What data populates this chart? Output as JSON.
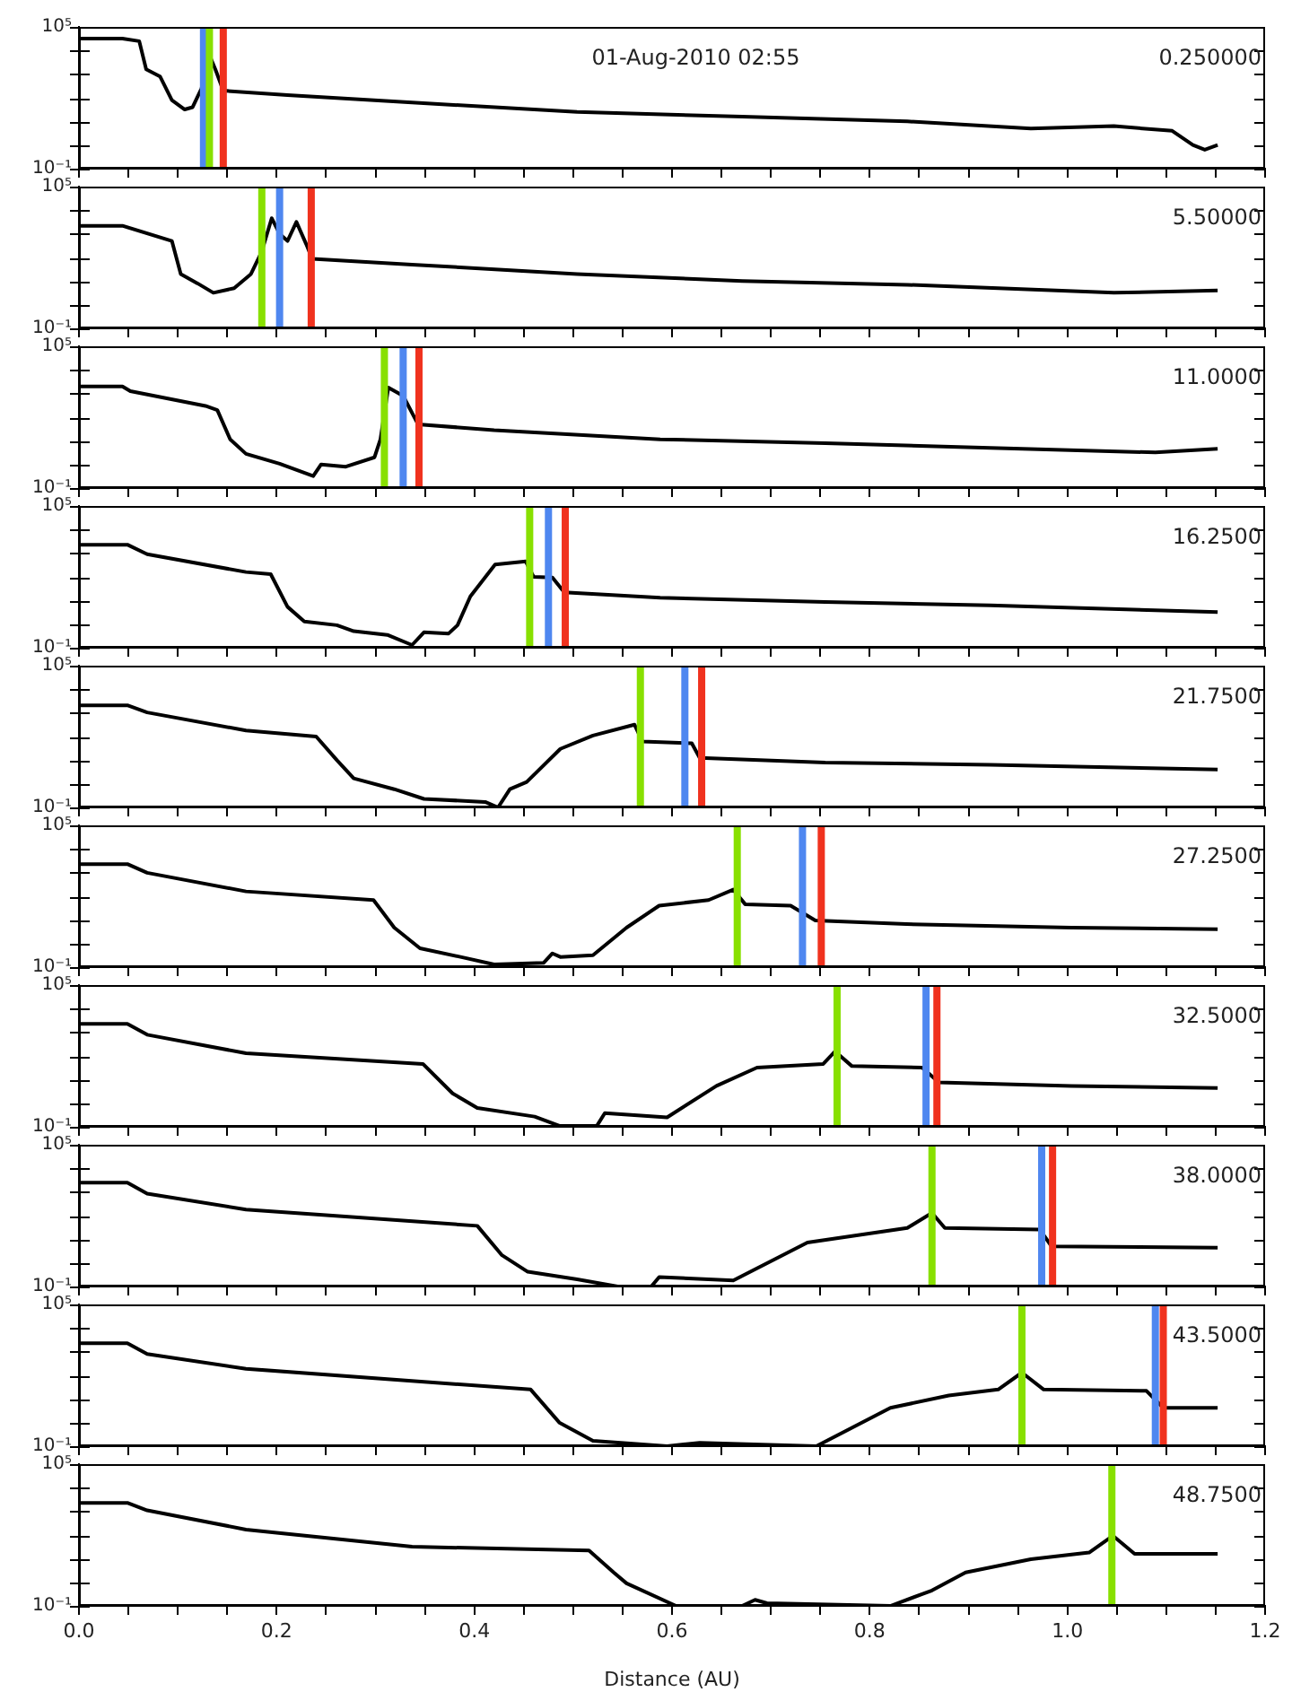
{
  "chart_data": [
    {
      "type": "line",
      "title": "01-Aug-2010 02:55",
      "annotations": [
        "0.250000"
      ],
      "color": "#000000",
      "log": "y",
      "tick_labels": "y",
      "xlim": [
        0,
        1.2
      ],
      "ylim": [
        0.1,
        100000
      ],
      "xticks": [
        {
          "value": 0,
          "label": null
        },
        {
          "value": 0.05,
          "label": null
        },
        {
          "value": 0.1,
          "label": null
        },
        {
          "value": 0.15,
          "label": null
        },
        {
          "value": 0.2,
          "label": null
        },
        {
          "value": 0.25,
          "label": null
        },
        {
          "value": 0.3,
          "label": null
        },
        {
          "value": 0.35,
          "label": null
        },
        {
          "value": 0.4,
          "label": null
        },
        {
          "value": 0.45,
          "label": null
        },
        {
          "value": 0.5,
          "label": null
        },
        {
          "value": 0.55,
          "label": null
        },
        {
          "value": 0.6,
          "label": null
        },
        {
          "value": 0.65,
          "label": null
        },
        {
          "value": 0.7,
          "label": null
        },
        {
          "value": 0.75,
          "label": null
        },
        {
          "value": 0.8,
          "label": null
        },
        {
          "value": 0.85,
          "label": null
        },
        {
          "value": 0.9,
          "label": null
        },
        {
          "value": 0.95,
          "label": null
        },
        {
          "value": 1.0,
          "label": null
        },
        {
          "value": 1.05,
          "label": null
        },
        {
          "value": 1.1,
          "label": null
        },
        {
          "value": 1.15,
          "label": null
        },
        {
          "value": 1.2,
          "label": null
        }
      ],
      "yticks": [
        {
          "value": 0.1,
          "label": "10⁻¹"
        },
        {
          "value": 1,
          "label": null
        },
        {
          "value": 10,
          "label": null
        },
        {
          "value": 100,
          "label": null
        },
        {
          "value": 1000,
          "label": null
        },
        {
          "value": 10000,
          "label": null
        },
        {
          "value": 100000,
          "label": "10⁵"
        }
      ],
      "x": [
        0,
        0.044,
        0.061,
        0.068,
        0.082,
        0.094,
        0.107,
        0.115,
        0.124,
        0.132,
        0.138,
        0.146,
        0.211,
        0.337,
        0.504,
        0.671,
        0.838,
        0.963,
        1.047,
        1.106,
        1.127,
        1.139,
        1.152
      ],
      "values": [
        32000,
        32000,
        25000,
        1600,
        800,
        80,
        32,
        40,
        250,
        6300,
        1600,
        200,
        130,
        63,
        25,
        16,
        10,
        5,
        6.3,
        4,
        1,
        0.63,
        1
      ],
      "ref_lines": [
        {
          "axis": "x",
          "value": 0.126,
          "color": "#4f87f0"
        },
        {
          "axis": "x",
          "value": 0.132,
          "color": "#88e000"
        },
        {
          "axis": "x",
          "value": 0.146,
          "color": "#f0321e"
        }
      ]
    },
    {
      "type": "line",
      "annotations": [
        "5.50000"
      ],
      "color": "#000000",
      "log": "y",
      "tick_labels": "y",
      "xlim": [
        0,
        1.2
      ],
      "ylim": [
        0.1,
        100000
      ],
      "xticks": [
        {
          "value": 0,
          "label": null
        },
        {
          "value": 0.05,
          "label": null
        },
        {
          "value": 0.1,
          "label": null
        },
        {
          "value": 0.15,
          "label": null
        },
        {
          "value": 0.2,
          "label": null
        },
        {
          "value": 0.25,
          "label": null
        },
        {
          "value": 0.3,
          "label": null
        },
        {
          "value": 0.35,
          "label": null
        },
        {
          "value": 0.4,
          "label": null
        },
        {
          "value": 0.45,
          "label": null
        },
        {
          "value": 0.5,
          "label": null
        },
        {
          "value": 0.55,
          "label": null
        },
        {
          "value": 0.6,
          "label": null
        },
        {
          "value": 0.65,
          "label": null
        },
        {
          "value": 0.7,
          "label": null
        },
        {
          "value": 0.75,
          "label": null
        },
        {
          "value": 0.8,
          "label": null
        },
        {
          "value": 0.85,
          "label": null
        },
        {
          "value": 0.9,
          "label": null
        },
        {
          "value": 0.95,
          "label": null
        },
        {
          "value": 1.0,
          "label": null
        },
        {
          "value": 1.05,
          "label": null
        },
        {
          "value": 1.1,
          "label": null
        },
        {
          "value": 1.15,
          "label": null
        },
        {
          "value": 1.2,
          "label": null
        }
      ],
      "yticks": [
        {
          "value": 0.1,
          "label": "10⁻¹"
        },
        {
          "value": 1,
          "label": null
        },
        {
          "value": 10,
          "label": null
        },
        {
          "value": 100,
          "label": null
        },
        {
          "value": 1000,
          "label": null
        },
        {
          "value": 10000,
          "label": null
        },
        {
          "value": 100000,
          "label": "10⁵"
        }
      ],
      "x": [
        0,
        0.044,
        0.094,
        0.103,
        0.12,
        0.136,
        0.157,
        0.174,
        0.185,
        0.195,
        0.203,
        0.211,
        0.22,
        0.23,
        0.236,
        0.337,
        0.504,
        0.671,
        0.838,
        1.047,
        1.152
      ],
      "values": [
        2200,
        2200,
        500,
        20,
        8,
        3.2,
        5,
        20,
        180,
        4600,
        1000,
        500,
        3200,
        360,
        87,
        50,
        20,
        10,
        7,
        3.2,
        4
      ],
      "ref_lines": [
        {
          "axis": "x",
          "value": 0.185,
          "color": "#88e000"
        },
        {
          "axis": "x",
          "value": 0.203,
          "color": "#4f87f0"
        },
        {
          "axis": "x",
          "value": 0.235,
          "color": "#f0321e"
        }
      ]
    },
    {
      "type": "line",
      "annotations": [
        "11.0000"
      ],
      "color": "#000000",
      "log": "y",
      "tick_labels": "y",
      "xlim": [
        0,
        1.2
      ],
      "ylim": [
        0.1,
        100000
      ],
      "xticks": [
        {
          "value": 0,
          "label": null
        },
        {
          "value": 0.05,
          "label": null
        },
        {
          "value": 0.1,
          "label": null
        },
        {
          "value": 0.15,
          "label": null
        },
        {
          "value": 0.2,
          "label": null
        },
        {
          "value": 0.25,
          "label": null
        },
        {
          "value": 0.3,
          "label": null
        },
        {
          "value": 0.35,
          "label": null
        },
        {
          "value": 0.4,
          "label": null
        },
        {
          "value": 0.45,
          "label": null
        },
        {
          "value": 0.5,
          "label": null
        },
        {
          "value": 0.55,
          "label": null
        },
        {
          "value": 0.6,
          "label": null
        },
        {
          "value": 0.65,
          "label": null
        },
        {
          "value": 0.7,
          "label": null
        },
        {
          "value": 0.75,
          "label": null
        },
        {
          "value": 0.8,
          "label": null
        },
        {
          "value": 0.85,
          "label": null
        },
        {
          "value": 0.9,
          "label": null
        },
        {
          "value": 0.95,
          "label": null
        },
        {
          "value": 1.0,
          "label": null
        },
        {
          "value": 1.05,
          "label": null
        },
        {
          "value": 1.1,
          "label": null
        },
        {
          "value": 1.15,
          "label": null
        },
        {
          "value": 1.2,
          "label": null
        }
      ],
      "yticks": [
        {
          "value": 0.1,
          "label": "10⁻¹"
        },
        {
          "value": 1,
          "label": null
        },
        {
          "value": 10,
          "label": null
        },
        {
          "value": 100,
          "label": null
        },
        {
          "value": 1000,
          "label": null
        },
        {
          "value": 10000,
          "label": null
        },
        {
          "value": 100000,
          "label": "10⁵"
        }
      ],
      "x": [
        0,
        0.044,
        0.052,
        0.128,
        0.14,
        0.153,
        0.169,
        0.203,
        0.237,
        0.245,
        0.27,
        0.299,
        0.305,
        0.313,
        0.328,
        0.343,
        0.42,
        0.588,
        0.755,
        0.922,
        1.089,
        1.152
      ],
      "values": [
        2000,
        2000,
        1260,
        300,
        200,
        11.5,
        2.8,
        1.07,
        0.32,
        1,
        0.8,
        2,
        11.5,
        1800,
        800,
        50,
        28,
        11.5,
        8,
        5,
        3.2,
        4.6
      ],
      "ref_lines": [
        {
          "axis": "x",
          "value": 0.309,
          "color": "#88e000"
        },
        {
          "axis": "x",
          "value": 0.328,
          "color": "#4f87f0"
        },
        {
          "axis": "x",
          "value": 0.344,
          "color": "#f0321e"
        }
      ]
    },
    {
      "type": "line",
      "annotations": [
        "16.2500"
      ],
      "color": "#000000",
      "log": "y",
      "tick_labels": "y",
      "xlim": [
        0,
        1.2
      ],
      "ylim": [
        0.1,
        100000
      ],
      "xticks": [
        {
          "value": 0,
          "label": null
        },
        {
          "value": 0.05,
          "label": null
        },
        {
          "value": 0.1,
          "label": null
        },
        {
          "value": 0.15,
          "label": null
        },
        {
          "value": 0.2,
          "label": null
        },
        {
          "value": 0.25,
          "label": null
        },
        {
          "value": 0.3,
          "label": null
        },
        {
          "value": 0.35,
          "label": null
        },
        {
          "value": 0.4,
          "label": null
        },
        {
          "value": 0.45,
          "label": null
        },
        {
          "value": 0.5,
          "label": null
        },
        {
          "value": 0.55,
          "label": null
        },
        {
          "value": 0.6,
          "label": null
        },
        {
          "value": 0.65,
          "label": null
        },
        {
          "value": 0.7,
          "label": null
        },
        {
          "value": 0.75,
          "label": null
        },
        {
          "value": 0.8,
          "label": null
        },
        {
          "value": 0.85,
          "label": null
        },
        {
          "value": 0.9,
          "label": null
        },
        {
          "value": 0.95,
          "label": null
        },
        {
          "value": 1.0,
          "label": null
        },
        {
          "value": 1.05,
          "label": null
        },
        {
          "value": 1.1,
          "label": null
        },
        {
          "value": 1.15,
          "label": null
        },
        {
          "value": 1.2,
          "label": null
        }
      ],
      "yticks": [
        {
          "value": 0.1,
          "label": "10⁻¹"
        },
        {
          "value": 1,
          "label": null
        },
        {
          "value": 10,
          "label": null
        },
        {
          "value": 100,
          "label": null
        },
        {
          "value": 1000,
          "label": null
        },
        {
          "value": 10000,
          "label": null
        },
        {
          "value": 100000,
          "label": "10⁵"
        }
      ],
      "x": [
        0,
        0.049,
        0.069,
        0.169,
        0.194,
        0.211,
        0.228,
        0.261,
        0.278,
        0.312,
        0.337,
        0.349,
        0.374,
        0.383,
        0.396,
        0.421,
        0.452,
        0.46,
        0.479,
        0.491,
        0.588,
        0.755,
        0.922,
        1.152
      ],
      "values": [
        2300,
        2300,
        910,
        160,
        130,
        5.4,
        1.3,
        0.9,
        0.5,
        0.35,
        0.13,
        0.45,
        0.4,
        0.9,
        15,
        330,
        450,
        100,
        93,
        22,
        13,
        8.7,
        6.2,
        3.2
      ],
      "ref_lines": [
        {
          "axis": "x",
          "value": 0.456,
          "color": "#88e000"
        },
        {
          "axis": "x",
          "value": 0.475,
          "color": "#4f87f0"
        },
        {
          "axis": "x",
          "value": 0.492,
          "color": "#f0321e"
        }
      ]
    },
    {
      "type": "line",
      "annotations": [
        "21.7500"
      ],
      "color": "#000000",
      "log": "y",
      "tick_labels": "y",
      "xlim": [
        0,
        1.2
      ],
      "ylim": [
        0.1,
        100000
      ],
      "xticks": [
        {
          "value": 0,
          "label": null
        },
        {
          "value": 0.05,
          "label": null
        },
        {
          "value": 0.1,
          "label": null
        },
        {
          "value": 0.15,
          "label": null
        },
        {
          "value": 0.2,
          "label": null
        },
        {
          "value": 0.25,
          "label": null
        },
        {
          "value": 0.3,
          "label": null
        },
        {
          "value": 0.35,
          "label": null
        },
        {
          "value": 0.4,
          "label": null
        },
        {
          "value": 0.45,
          "label": null
        },
        {
          "value": 0.5,
          "label": null
        },
        {
          "value": 0.55,
          "label": null
        },
        {
          "value": 0.6,
          "label": null
        },
        {
          "value": 0.65,
          "label": null
        },
        {
          "value": 0.7,
          "label": null
        },
        {
          "value": 0.75,
          "label": null
        },
        {
          "value": 0.8,
          "label": null
        },
        {
          "value": 0.85,
          "label": null
        },
        {
          "value": 0.9,
          "label": null
        },
        {
          "value": 0.95,
          "label": null
        },
        {
          "value": 1.0,
          "label": null
        },
        {
          "value": 1.05,
          "label": null
        },
        {
          "value": 1.1,
          "label": null
        },
        {
          "value": 1.15,
          "label": null
        },
        {
          "value": 1.2,
          "label": null
        }
      ],
      "yticks": [
        {
          "value": 0.1,
          "label": "10⁻¹"
        },
        {
          "value": 1,
          "label": null
        },
        {
          "value": 10,
          "label": null
        },
        {
          "value": 100,
          "label": null
        },
        {
          "value": 1000,
          "label": null
        },
        {
          "value": 10000,
          "label": null
        },
        {
          "value": 100000,
          "label": "10⁵"
        }
      ],
      "x": [
        0,
        0.049,
        0.069,
        0.169,
        0.24,
        0.261,
        0.278,
        0.319,
        0.349,
        0.411,
        0.424,
        0.436,
        0.453,
        0.487,
        0.52,
        0.562,
        0.57,
        0.62,
        0.628,
        0.755,
        0.922,
        1.152
      ],
      "values": [
        2100,
        2100,
        1050,
        180,
        100,
        10,
        1.7,
        0.59,
        0.23,
        0.17,
        0.1,
        0.59,
        1.2,
        30,
        110,
        320,
        62,
        52,
        12.6,
        8,
        6.3,
        4
      ],
      "ref_lines": [
        {
          "axis": "x",
          "value": 0.568,
          "color": "#88e000"
        },
        {
          "axis": "x",
          "value": 0.613,
          "color": "#4f87f0"
        },
        {
          "axis": "x",
          "value": 0.63,
          "color": "#f0321e"
        }
      ]
    },
    {
      "type": "line",
      "annotations": [
        "27.2500"
      ],
      "color": "#000000",
      "log": "y",
      "tick_labels": "y",
      "xlim": [
        0,
        1.2
      ],
      "ylim": [
        0.1,
        100000
      ],
      "xticks": [
        {
          "value": 0,
          "label": null
        },
        {
          "value": 0.05,
          "label": null
        },
        {
          "value": 0.1,
          "label": null
        },
        {
          "value": 0.15,
          "label": null
        },
        {
          "value": 0.2,
          "label": null
        },
        {
          "value": 0.25,
          "label": null
        },
        {
          "value": 0.3,
          "label": null
        },
        {
          "value": 0.35,
          "label": null
        },
        {
          "value": 0.4,
          "label": null
        },
        {
          "value": 0.45,
          "label": null
        },
        {
          "value": 0.5,
          "label": null
        },
        {
          "value": 0.55,
          "label": null
        },
        {
          "value": 0.6,
          "label": null
        },
        {
          "value": 0.65,
          "label": null
        },
        {
          "value": 0.7,
          "label": null
        },
        {
          "value": 0.75,
          "label": null
        },
        {
          "value": 0.8,
          "label": null
        },
        {
          "value": 0.85,
          "label": null
        },
        {
          "value": 0.9,
          "label": null
        },
        {
          "value": 0.95,
          "label": null
        },
        {
          "value": 1.0,
          "label": null
        },
        {
          "value": 1.05,
          "label": null
        },
        {
          "value": 1.1,
          "label": null
        },
        {
          "value": 1.15,
          "label": null
        },
        {
          "value": 1.2,
          "label": null
        }
      ],
      "yticks": [
        {
          "value": 0.1,
          "label": "10⁻¹"
        },
        {
          "value": 1,
          "label": null
        },
        {
          "value": 10,
          "label": null
        },
        {
          "value": 100,
          "label": null
        },
        {
          "value": 1000,
          "label": null
        },
        {
          "value": 10000,
          "label": null
        },
        {
          "value": 100000,
          "label": "10⁵"
        }
      ],
      "x": [
        0,
        0.049,
        0.069,
        0.169,
        0.298,
        0.319,
        0.345,
        0.386,
        0.42,
        0.47,
        0.479,
        0.487,
        0.52,
        0.554,
        0.587,
        0.637,
        0.662,
        0.674,
        0.72,
        0.745,
        0.837,
        1.004,
        1.152
      ],
      "values": [
        2300,
        2300,
        980,
        160,
        69,
        4.7,
        0.63,
        0.27,
        0.13,
        0.15,
        0.38,
        0.27,
        0.32,
        4.7,
        40,
        69,
        190,
        46,
        40,
        9.5,
        6.6,
        4.7,
        4
      ],
      "ref_lines": [
        {
          "axis": "x",
          "value": 0.666,
          "color": "#88e000"
        },
        {
          "axis": "x",
          "value": 0.732,
          "color": "#4f87f0"
        },
        {
          "axis": "x",
          "value": 0.751,
          "color": "#f0321e"
        }
      ]
    },
    {
      "type": "line",
      "annotations": [
        "32.5000"
      ],
      "color": "#000000",
      "log": "y",
      "tick_labels": "y",
      "xlim": [
        0,
        1.2
      ],
      "ylim": [
        0.1,
        100000
      ],
      "xticks": [
        {
          "value": 0,
          "label": null
        },
        {
          "value": 0.05,
          "label": null
        },
        {
          "value": 0.1,
          "label": null
        },
        {
          "value": 0.15,
          "label": null
        },
        {
          "value": 0.2,
          "label": null
        },
        {
          "value": 0.25,
          "label": null
        },
        {
          "value": 0.3,
          "label": null
        },
        {
          "value": 0.35,
          "label": null
        },
        {
          "value": 0.4,
          "label": null
        },
        {
          "value": 0.45,
          "label": null
        },
        {
          "value": 0.5,
          "label": null
        },
        {
          "value": 0.55,
          "label": null
        },
        {
          "value": 0.6,
          "label": null
        },
        {
          "value": 0.65,
          "label": null
        },
        {
          "value": 0.7,
          "label": null
        },
        {
          "value": 0.75,
          "label": null
        },
        {
          "value": 0.8,
          "label": null
        },
        {
          "value": 0.85,
          "label": null
        },
        {
          "value": 0.9,
          "label": null
        },
        {
          "value": 0.95,
          "label": null
        },
        {
          "value": 1.0,
          "label": null
        },
        {
          "value": 1.05,
          "label": null
        },
        {
          "value": 1.1,
          "label": null
        },
        {
          "value": 1.15,
          "label": null
        },
        {
          "value": 1.2,
          "label": null
        }
      ],
      "yticks": [
        {
          "value": 0.1,
          "label": "10⁻¹"
        },
        {
          "value": 1,
          "label": null
        },
        {
          "value": 10,
          "label": null
        },
        {
          "value": 100,
          "label": null
        },
        {
          "value": 1000,
          "label": null
        },
        {
          "value": 10000,
          "label": null
        },
        {
          "value": 100000,
          "label": "10⁵"
        }
      ],
      "x": [
        0,
        0.049,
        0.069,
        0.169,
        0.348,
        0.378,
        0.403,
        0.461,
        0.486,
        0.524,
        0.532,
        0.595,
        0.645,
        0.686,
        0.753,
        0.765,
        0.782,
        0.853,
        0.87,
        1.004,
        1.152
      ],
      "values": [
        2300,
        2300,
        790,
        130,
        46,
        2.6,
        0.63,
        0.27,
        0.11,
        0.11,
        0.38,
        0.25,
        5.4,
        32,
        46,
        155,
        37,
        32,
        7.6,
        5.4,
        4.4
      ],
      "ref_lines": [
        {
          "axis": "x",
          "value": 0.767,
          "color": "#88e000"
        },
        {
          "axis": "x",
          "value": 0.857,
          "color": "#4f87f0"
        },
        {
          "axis": "x",
          "value": 0.868,
          "color": "#f0321e"
        }
      ]
    },
    {
      "type": "line",
      "annotations": [
        "38.0000"
      ],
      "color": "#000000",
      "log": "y",
      "tick_labels": "y",
      "xlim": [
        0,
        1.2
      ],
      "ylim": [
        0.1,
        100000
      ],
      "xticks": [
        {
          "value": 0,
          "label": null
        },
        {
          "value": 0.05,
          "label": null
        },
        {
          "value": 0.1,
          "label": null
        },
        {
          "value": 0.15,
          "label": null
        },
        {
          "value": 0.2,
          "label": null
        },
        {
          "value": 0.25,
          "label": null
        },
        {
          "value": 0.3,
          "label": null
        },
        {
          "value": 0.35,
          "label": null
        },
        {
          "value": 0.4,
          "label": null
        },
        {
          "value": 0.45,
          "label": null
        },
        {
          "value": 0.5,
          "label": null
        },
        {
          "value": 0.55,
          "label": null
        },
        {
          "value": 0.6,
          "label": null
        },
        {
          "value": 0.65,
          "label": null
        },
        {
          "value": 0.7,
          "label": null
        },
        {
          "value": 0.75,
          "label": null
        },
        {
          "value": 0.8,
          "label": null
        },
        {
          "value": 0.85,
          "label": null
        },
        {
          "value": 0.9,
          "label": null
        },
        {
          "value": 0.95,
          "label": null
        },
        {
          "value": 1.0,
          "label": null
        },
        {
          "value": 1.05,
          "label": null
        },
        {
          "value": 1.1,
          "label": null
        },
        {
          "value": 1.15,
          "label": null
        },
        {
          "value": 1.2,
          "label": null
        }
      ],
      "yticks": [
        {
          "value": 0.1,
          "label": "10⁻¹"
        },
        {
          "value": 1,
          "label": null
        },
        {
          "value": 10,
          "label": null
        },
        {
          "value": 100,
          "label": null
        },
        {
          "value": 1000,
          "label": null
        },
        {
          "value": 10000,
          "label": null
        },
        {
          "value": 100000,
          "label": "10⁵"
        }
      ],
      "x": [
        0,
        0.049,
        0.069,
        0.169,
        0.403,
        0.428,
        0.454,
        0.504,
        0.545,
        0.579,
        0.587,
        0.662,
        0.737,
        0.838,
        0.863,
        0.876,
        0.972,
        0.984,
        1.152
      ],
      "values": [
        2500,
        2500,
        850,
        180,
        37,
        2.1,
        0.42,
        0.2,
        0.1,
        0.1,
        0.25,
        0.18,
        7.2,
        30,
        130,
        30,
        26,
        5,
        4.4
      ],
      "ref_lines": [
        {
          "axis": "x",
          "value": 0.863,
          "color": "#88e000"
        },
        {
          "axis": "x",
          "value": 0.974,
          "color": "#4f87f0"
        },
        {
          "axis": "x",
          "value": 0.985,
          "color": "#f0321e"
        }
      ]
    },
    {
      "type": "line",
      "annotations": [
        "43.5000"
      ],
      "color": "#000000",
      "log": "y",
      "tick_labels": "y",
      "xlim": [
        0,
        1.2
      ],
      "ylim": [
        0.1,
        100000
      ],
      "xticks": [
        {
          "value": 0,
          "label": null
        },
        {
          "value": 0.05,
          "label": null
        },
        {
          "value": 0.1,
          "label": null
        },
        {
          "value": 0.15,
          "label": null
        },
        {
          "value": 0.2,
          "label": null
        },
        {
          "value": 0.25,
          "label": null
        },
        {
          "value": 0.3,
          "label": null
        },
        {
          "value": 0.35,
          "label": null
        },
        {
          "value": 0.4,
          "label": null
        },
        {
          "value": 0.45,
          "label": null
        },
        {
          "value": 0.5,
          "label": null
        },
        {
          "value": 0.55,
          "label": null
        },
        {
          "value": 0.6,
          "label": null
        },
        {
          "value": 0.65,
          "label": null
        },
        {
          "value": 0.7,
          "label": null
        },
        {
          "value": 0.75,
          "label": null
        },
        {
          "value": 0.8,
          "label": null
        },
        {
          "value": 0.85,
          "label": null
        },
        {
          "value": 0.9,
          "label": null
        },
        {
          "value": 0.95,
          "label": null
        },
        {
          "value": 1.0,
          "label": null
        },
        {
          "value": 1.05,
          "label": null
        },
        {
          "value": 1.1,
          "label": null
        },
        {
          "value": 1.15,
          "label": null
        },
        {
          "value": 1.2,
          "label": null
        }
      ],
      "yticks": [
        {
          "value": 0.1,
          "label": "10⁻¹"
        },
        {
          "value": 1,
          "label": null
        },
        {
          "value": 10,
          "label": null
        },
        {
          "value": 100,
          "label": null
        },
        {
          "value": 1000,
          "label": null
        },
        {
          "value": 10000,
          "label": null
        },
        {
          "value": 100000,
          "label": "10⁵"
        }
      ],
      "x": [
        0,
        0.049,
        0.069,
        0.169,
        0.457,
        0.486,
        0.52,
        0.595,
        0.628,
        0.746,
        0.821,
        0.88,
        0.93,
        0.954,
        0.976,
        1.08,
        1.097,
        1.152
      ],
      "values": [
        2300,
        2300,
        800,
        190,
        25,
        1,
        0.17,
        0.1,
        0.14,
        0.1,
        4.2,
        14,
        25,
        130,
        25,
        22,
        4.2,
        4.2
      ],
      "ref_lines": [
        {
          "axis": "x",
          "value": 0.954,
          "color": "#88e000"
        },
        {
          "axis": "x",
          "value": 1.089,
          "color": "#4f87f0"
        },
        {
          "axis": "x",
          "value": 1.097,
          "color": "#f0321e"
        }
      ]
    },
    {
      "type": "line",
      "annotations": [
        "48.7500"
      ],
      "xlabel": "Distance (AU)",
      "color": "#000000",
      "log": "y",
      "xlim": [
        0,
        1.2
      ],
      "ylim": [
        0.1,
        100000
      ],
      "xticks": [
        {
          "value": 0,
          "label": "0.0"
        },
        {
          "value": 0.05,
          "label": null
        },
        {
          "value": 0.1,
          "label": null
        },
        {
          "value": 0.15,
          "label": null
        },
        {
          "value": 0.2,
          "label": "0.2"
        },
        {
          "value": 0.25,
          "label": null
        },
        {
          "value": 0.3,
          "label": null
        },
        {
          "value": 0.35,
          "label": null
        },
        {
          "value": 0.4,
          "label": "0.4"
        },
        {
          "value": 0.45,
          "label": null
        },
        {
          "value": 0.5,
          "label": null
        },
        {
          "value": 0.55,
          "label": null
        },
        {
          "value": 0.6,
          "label": "0.6"
        },
        {
          "value": 0.65,
          "label": null
        },
        {
          "value": 0.7,
          "label": null
        },
        {
          "value": 0.75,
          "label": null
        },
        {
          "value": 0.8,
          "label": "0.8"
        },
        {
          "value": 0.85,
          "label": null
        },
        {
          "value": 0.9,
          "label": null
        },
        {
          "value": 0.95,
          "label": null
        },
        {
          "value": 1.0,
          "label": "1.0"
        },
        {
          "value": 1.05,
          "label": null
        },
        {
          "value": 1.1,
          "label": null
        },
        {
          "value": 1.15,
          "label": null
        },
        {
          "value": 1.2,
          "label": "1.2"
        }
      ],
      "yticks": [
        {
          "value": 0.1,
          "label": "10⁻¹"
        },
        {
          "value": 1,
          "label": null
        },
        {
          "value": 10,
          "label": null
        },
        {
          "value": 100,
          "label": null
        },
        {
          "value": 1000,
          "label": null
        },
        {
          "value": 10000,
          "label": null
        },
        {
          "value": 100000,
          "label": "10⁵"
        }
      ],
      "x": [
        0,
        0.049,
        0.069,
        0.169,
        0.337,
        0.516,
        0.541,
        0.554,
        0.604,
        0.671,
        0.684,
        0.696,
        0.821,
        0.863,
        0.897,
        0.963,
        1.022,
        1.046,
        1.068,
        1.152
      ],
      "values": [
        2300,
        2300,
        1100,
        170,
        32,
        22,
        2.6,
        0.9,
        0.1,
        0.1,
        0.18,
        0.13,
        0.1,
        0.45,
        2.6,
        9.5,
        18,
        93,
        16,
        16
      ],
      "ref_lines": [
        {
          "axis": "x",
          "value": 1.045,
          "color": "#88e000"
        }
      ]
    }
  ]
}
